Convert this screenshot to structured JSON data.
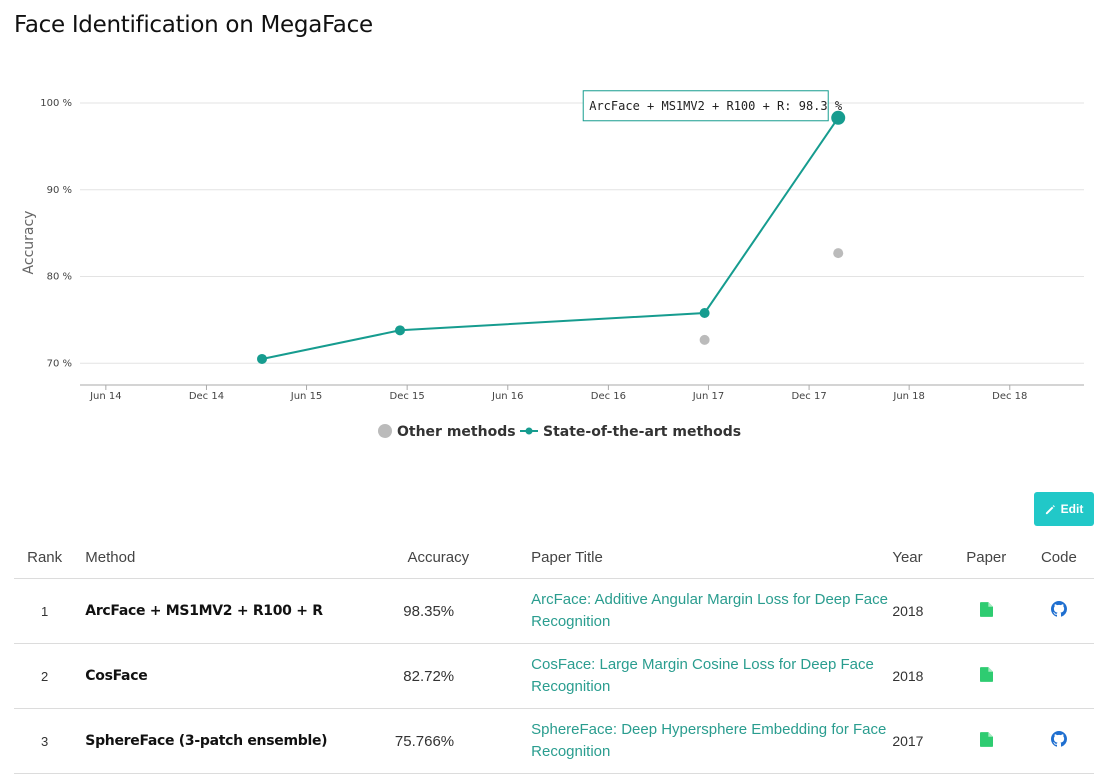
{
  "page": {
    "title": "Face Identification on MegaFace"
  },
  "chart_data": {
    "type": "line",
    "ylabel": "Accuracy",
    "y_ticks": [
      "70 %",
      "80 %",
      "90 %",
      "100 %"
    ],
    "y_tick_values": [
      70,
      80,
      90,
      100
    ],
    "ylim": [
      67.5,
      101.5
    ],
    "x_ticks": [
      "Jun 14",
      "Dec 14",
      "Jun 15",
      "Dec 15",
      "Jun 16",
      "Dec 16",
      "Jun 17",
      "Dec 17",
      "Jun 18",
      "Dec 18"
    ],
    "x_tick_dates": [
      "2014-06-01",
      "2014-12-01",
      "2015-06-01",
      "2015-12-01",
      "2016-06-01",
      "2016-12-01",
      "2017-06-01",
      "2017-12-01",
      "2018-06-01",
      "2018-12-01"
    ],
    "xlim": [
      "2014-04-15",
      "2019-04-15"
    ],
    "grid": true,
    "legend_placement": "bottom",
    "series": [
      {
        "name": "Other methods",
        "kind": "scatter",
        "color": "#bbbbbb",
        "points": [
          {
            "date": "2017-05-25",
            "value": 72.7
          },
          {
            "date": "2018-01-23",
            "value": 82.7
          }
        ]
      },
      {
        "name": "State-of-the-art methods",
        "kind": "line",
        "color": "#169c8f",
        "points": [
          {
            "date": "2015-03-12",
            "value": 70.5
          },
          {
            "date": "2015-11-18",
            "value": 73.8
          },
          {
            "date": "2017-05-25",
            "value": 75.8
          },
          {
            "date": "2018-01-23",
            "value": 98.3
          }
        ]
      }
    ],
    "tooltip": {
      "text": "ArcFace + MS1MV2 + R100 + R: 98.3 %",
      "series": 1,
      "point": 3
    }
  },
  "toolbar": {
    "edit_label": "Edit"
  },
  "table": {
    "headers": {
      "rank": "Rank",
      "method": "Method",
      "accuracy": "Accuracy",
      "paper_title": "Paper Title",
      "year": "Year",
      "paper": "Paper",
      "code": "Code"
    },
    "rows": [
      {
        "rank": "1",
        "method": "ArcFace + MS1MV2 + R100 + R",
        "accuracy": "98.35%",
        "paper_title": "ArcFace: Additive Angular Margin Loss for Deep Face Recognition",
        "year": "2018",
        "has_paper": true,
        "has_code": true
      },
      {
        "rank": "2",
        "method": "CosFace",
        "accuracy": "82.72%",
        "paper_title": "CosFace: Large Margin Cosine Loss for Deep Face Recognition",
        "year": "2018",
        "has_paper": true,
        "has_code": false
      },
      {
        "rank": "3",
        "method": "SphereFace (3-patch ensemble)",
        "accuracy": "75.766%",
        "paper_title": "SphereFace: Deep Hypersphere Embedding for Face Recognition",
        "year": "2017",
        "has_paper": true,
        "has_code": true
      }
    ]
  },
  "icons": {
    "edit": "pencil-icon",
    "paper": "file-icon",
    "code": "github-icon"
  },
  "colors": {
    "accent": "#21c8c8",
    "sota_line": "#169c8f",
    "other_points": "#bbbbbb",
    "paper_icon": "#2ecc71",
    "code_icon": "#1f6fd0",
    "link": "#2a9d8f"
  }
}
